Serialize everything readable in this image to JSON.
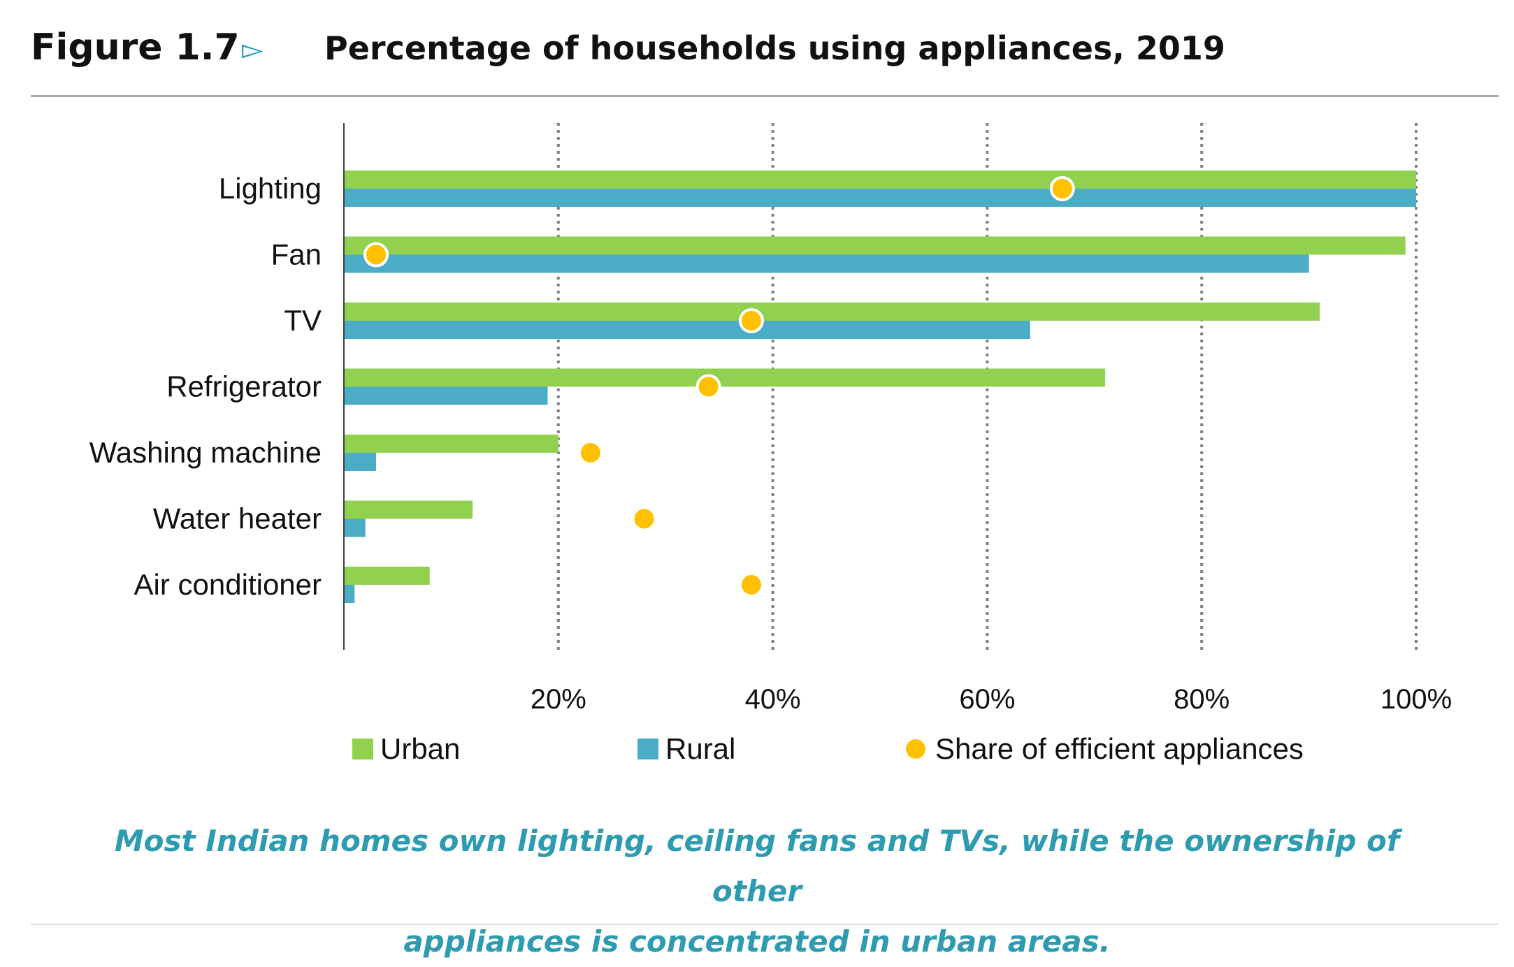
{
  "figure": {
    "number_label": "Figure 1.7",
    "arrow_glyph": "▻",
    "title": "Percentage of households using appliances, 2019"
  },
  "caption": {
    "line1": "Most Indian homes own lighting, ceiling fans and TVs, while the ownership of other",
    "line2": "appliances is concentrated in urban areas."
  },
  "colors": {
    "urban": "#92d050",
    "rural": "#4bacc6",
    "efficient": "#ffc000",
    "caption": "#2e9bb0",
    "title_arrow": "#2a9fc5"
  },
  "chart_data": {
    "type": "bar",
    "orientation": "horizontal",
    "title": "Percentage of households using appliances, 2019",
    "categories": [
      "Lighting",
      "Fan",
      "TV",
      "Refrigerator",
      "Washing machine",
      "Water heater",
      "Air conditioner"
    ],
    "series": [
      {
        "name": "Urban",
        "type": "bar",
        "color": "#92d050",
        "values": [
          100,
          99,
          91,
          71,
          20,
          12,
          8
        ]
      },
      {
        "name": "Rural",
        "type": "bar",
        "color": "#4bacc6",
        "values": [
          100,
          90,
          64,
          19,
          3,
          2,
          1
        ]
      },
      {
        "name": "Share of efficient appliances",
        "type": "scatter",
        "color": "#ffc000",
        "values": [
          67,
          3,
          38,
          34,
          23,
          28,
          38
        ]
      }
    ],
    "xlim": [
      0,
      100
    ],
    "x_ticks": [
      20,
      40,
      60,
      80,
      100
    ],
    "x_tick_labels": [
      "20%",
      "40%",
      "60%",
      "80%",
      "100%"
    ],
    "xlabel": "",
    "ylabel": "",
    "grid": "vertical dotted",
    "legend_position": "bottom"
  }
}
